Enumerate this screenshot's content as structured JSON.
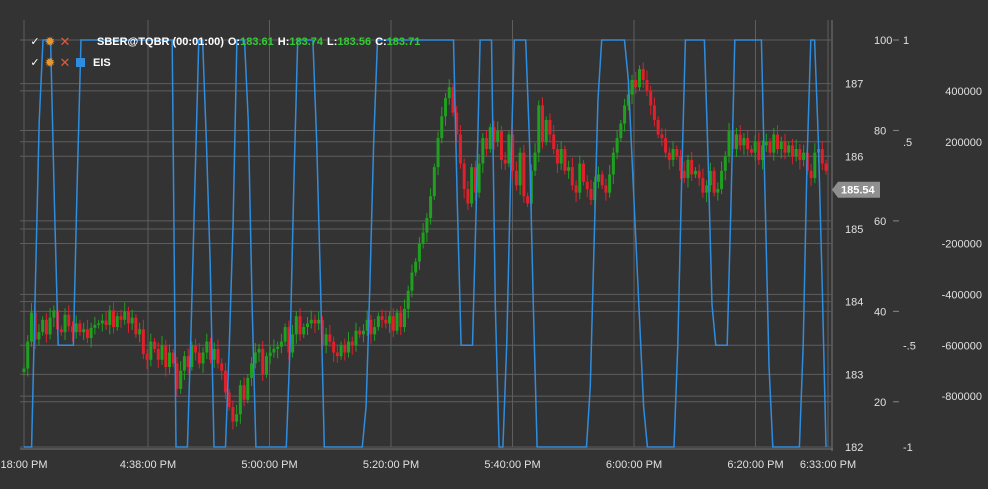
{
  "legend": {
    "row1": {
      "symbol": "SBER@TQBR (00:01:00)",
      "o_label": "O:",
      "o_value": "183.61",
      "h_label": "H:",
      "h_value": "183.74",
      "l_label": "L:",
      "l_value": "183.56",
      "c_label": "C:",
      "c_value": "183.71"
    },
    "row2": {
      "name": "EIS",
      "color": "#2f8de0"
    }
  },
  "icons": [
    "check-icon",
    "gear-icon",
    "close-icon"
  ],
  "current_price": "185.54",
  "colors": {
    "up": "#1fa01f",
    "down": "#e0202a",
    "eis": "#2f8de0",
    "grid": "#5e5e5e",
    "background": "#333333"
  },
  "chart_data": {
    "type": "candlestick",
    "price_axis": {
      "ticks": [
        182,
        183,
        184,
        185,
        186,
        187
      ],
      "ylim": [
        182,
        187.6
      ]
    },
    "eis_axis_a": {
      "ticks": [
        20,
        40,
        60,
        80,
        100
      ],
      "ylim": [
        10,
        100
      ]
    },
    "eis_axis_b": {
      "ticks": [
        "-1",
        "-.5",
        ".5",
        "1"
      ],
      "ylim": [
        -1,
        1
      ]
    },
    "volume_axis": {
      "ticks": [
        -800000,
        -600000,
        -400000,
        -200000,
        200000,
        400000
      ],
      "ylim": [
        -1000000,
        600000
      ]
    },
    "x_ticks": [
      "18:00 PM",
      "4:38:00 PM",
      "5:00:00 PM",
      "5:20:00 PM",
      "5:40:00 PM",
      "6:00:00 PM",
      "6:20:00 PM",
      "6:33:00 PM"
    ],
    "series": [
      {
        "name": "SBER@TQBR (00:01:00)",
        "type": "candlestick",
        "close": [
          183.08,
          183.45,
          183.85,
          183.48,
          183.58,
          183.75,
          183.55,
          183.78,
          183.88,
          183.62,
          183.58,
          183.82,
          183.66,
          183.58,
          183.7,
          183.58,
          183.62,
          183.5,
          183.64,
          183.68,
          183.7,
          183.74,
          183.68,
          183.88,
          183.65,
          183.8,
          183.75,
          183.86,
          183.7,
          183.78,
          183.55,
          183.62,
          183.28,
          183.2,
          183.45,
          183.35,
          183.2,
          183.4,
          183.1,
          183.3,
          183.15,
          182.8,
          183.05,
          183.25,
          183.1,
          183.4,
          183.3,
          183.15,
          183.3,
          183.45,
          183.2,
          183.35,
          183.15,
          183.05,
          182.75,
          182.55,
          182.35,
          182.45,
          182.85,
          182.65,
          182.95,
          183.15,
          183.3,
          183.35,
          183.0,
          183.25,
          183.3,
          183.35,
          183.38,
          183.45,
          183.65,
          183.3,
          183.55,
          183.8,
          183.55,
          183.65,
          183.7,
          183.75,
          183.7,
          183.75,
          183.4,
          183.55,
          183.45,
          183.3,
          183.25,
          183.4,
          183.3,
          183.45,
          183.4,
          183.6,
          183.55,
          183.6,
          183.75,
          183.55,
          183.65,
          183.8,
          183.75,
          183.7,
          183.8,
          183.6,
          183.85,
          183.65,
          183.9,
          184.15,
          184.4,
          184.55,
          184.8,
          184.95,
          185.15,
          185.45,
          185.85,
          186.25,
          186.55,
          186.8,
          186.95,
          186.6,
          186.3,
          185.9,
          185.55,
          185.35,
          185.85,
          185.5,
          185.9,
          186.25,
          186.1,
          186.4,
          186.2,
          186.35,
          185.95,
          185.9,
          186.3,
          185.8,
          185.6,
          186.05,
          185.45,
          185.35,
          185.8,
          186.05,
          186.7,
          186.2,
          186.5,
          186.3,
          186.1,
          185.9,
          186.1,
          185.8,
          185.85,
          185.6,
          185.5,
          185.9,
          185.65,
          185.55,
          185.4,
          185.65,
          185.75,
          185.6,
          185.5,
          185.75,
          186.05,
          186.25,
          186.45,
          186.7,
          186.85,
          187.05,
          186.95,
          187.2,
          187.05,
          186.9,
          186.7,
          186.5,
          186.3,
          186.25,
          186.05,
          185.95,
          186.1,
          186.0,
          185.8,
          185.7,
          185.95,
          185.75,
          185.8,
          185.7,
          185.5,
          185.6,
          185.8,
          185.5,
          185.55,
          185.8,
          186.0,
          186.35,
          186.1,
          186.3,
          186.15,
          186.25,
          186.1,
          186.05,
          186.2,
          185.95,
          186.15,
          186.2,
          186.05,
          186.3,
          186.1,
          186.2,
          186.05,
          186.15,
          186.0,
          186.1,
          185.95,
          186.05,
          185.8,
          185.7,
          186.05,
          186.1,
          185.9,
          185.8
        ],
        "last": 185.54
      },
      {
        "name": "EIS",
        "type": "line",
        "axis": "eis_axis_b",
        "values": [
          -1,
          -1,
          -1,
          -0.2,
          0.6,
          1,
          1,
          1,
          0.2,
          -0.5,
          -0.5,
          -0.5,
          -0.5,
          -0.5,
          0.3,
          1,
          1,
          1,
          1,
          1,
          1,
          1,
          1,
          1,
          1,
          1,
          1,
          1,
          1,
          1,
          1,
          1,
          1,
          1,
          1,
          1,
          1,
          1,
          1,
          1,
          -1,
          -1,
          -1,
          -1,
          -0.4,
          0.3,
          1,
          1,
          0.5,
          -0.1,
          -1,
          -1,
          -1,
          -1,
          -0.5,
          0.1,
          1,
          1,
          1,
          0.6,
          -0.3,
          -1,
          -1,
          -1,
          -1,
          -1,
          -1,
          -1,
          -1,
          -1,
          -0.5,
          0.3,
          1,
          1,
          1,
          1,
          1,
          0.5,
          -0.2,
          -1,
          -1,
          -1,
          -1,
          -1,
          -1,
          -1,
          -1,
          -1,
          -1,
          -1,
          -0.8,
          -0.2,
          0.5,
          1,
          1,
          1,
          1,
          1,
          1,
          1,
          1,
          1,
          1,
          1,
          1,
          1,
          1,
          1,
          1,
          1,
          1,
          1,
          1,
          1,
          0.2,
          -0.5,
          -0.5,
          -0.5,
          -0.5,
          0.2,
          1,
          1,
          1,
          1,
          -0.3,
          -1,
          -1,
          -0.5,
          0.3,
          1,
          1,
          1,
          1,
          0.5,
          -0.3,
          -1,
          -1,
          -1,
          -1,
          -1,
          -1,
          -1,
          -1,
          -1,
          -1,
          -1,
          -1,
          -1,
          -1,
          -0.7,
          0,
          0.7,
          1,
          1,
          1,
          1,
          1,
          1,
          1,
          0.8,
          0.4,
          0,
          -0.4,
          -0.8,
          -1,
          -1,
          -1,
          -1,
          -1,
          -1,
          -1,
          -1,
          -0.5,
          0.3,
          1,
          1,
          1,
          1,
          1,
          1,
          0.4,
          -0.3,
          -0.5,
          -0.5,
          -0.5,
          -0.5,
          0.2,
          1,
          1,
          1,
          1,
          1,
          1,
          1,
          1,
          0.2,
          -0.6,
          -1,
          -1,
          -1,
          -1,
          -1,
          -1,
          -1,
          -1,
          -0.5,
          0.4,
          1,
          1,
          0.5,
          -0.2,
          -1
        ]
      }
    ]
  }
}
